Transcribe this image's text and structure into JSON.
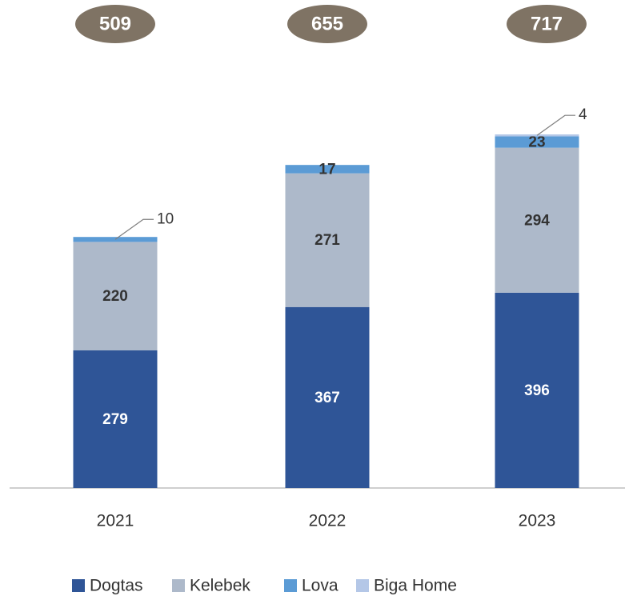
{
  "chart_data": {
    "type": "stacked_bar",
    "categories": [
      "2021",
      "2022",
      "2023"
    ],
    "totals": [
      509,
      655,
      717
    ],
    "series": [
      {
        "name": "Dogtas",
        "color": "#2f5597",
        "values": [
          279,
          367,
          396
        ]
      },
      {
        "name": "Kelebek",
        "color": "#adb9ca",
        "values": [
          220,
          271,
          294
        ]
      },
      {
        "name": "Lova",
        "color": "#5b9bd5",
        "values": [
          10,
          17,
          23
        ]
      },
      {
        "name": "Biga Home",
        "color": "#b4c7e7",
        "values": [
          null,
          null,
          4
        ]
      }
    ]
  }
}
